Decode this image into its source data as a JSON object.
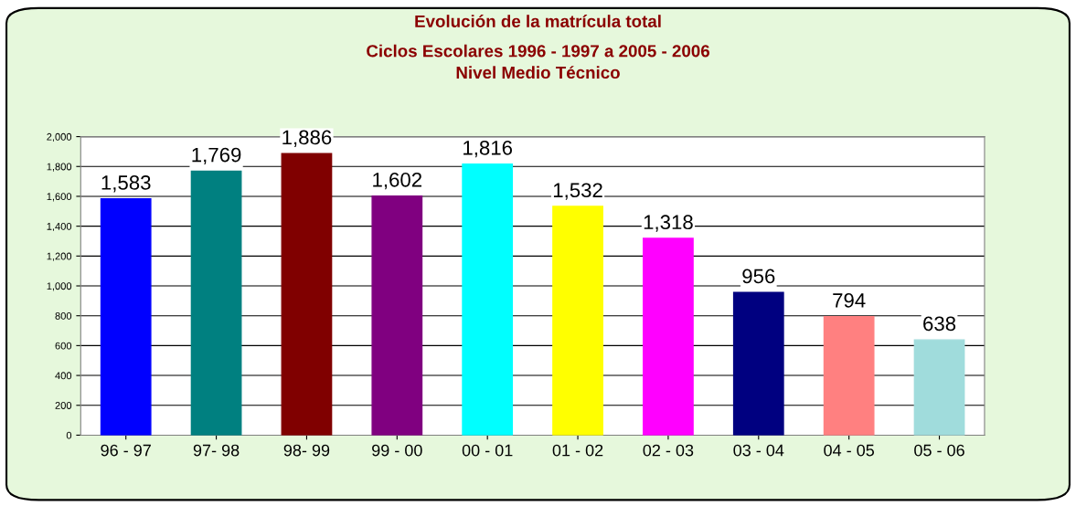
{
  "chart_data": {
    "type": "bar",
    "title": "Evolución de la matrícula total",
    "subtitle": "Ciclos Escolares 1996 - 1997 a 2005 - 2006\nNivel Medio Técnico",
    "categories": [
      "96 - 97",
      "97- 98",
      "98- 99",
      "99 - 00",
      "00 - 01",
      "01 - 02",
      "02 - 03",
      "03 - 04",
      "04 - 05",
      "05 - 06"
    ],
    "values": [
      1583,
      1769,
      1886,
      1602,
      1816,
      1532,
      1318,
      956,
      794,
      638
    ],
    "value_labels": [
      "1,583",
      "1,769",
      "1,886",
      "1,602",
      "1,816",
      "1,532",
      "1,318",
      "956",
      "794",
      "638"
    ],
    "colors": [
      "#0000ff",
      "#008080",
      "#800000",
      "#800080",
      "#00ffff",
      "#ffff00",
      "#ff00ff",
      "#000080",
      "#ff8080",
      "#a0dcdc"
    ],
    "ylim": [
      0,
      2000
    ],
    "yticks": [
      0,
      200,
      400,
      600,
      800,
      {
        "value": 1000,
        "label": "1,000"
      },
      {
        "value": 1200,
        "label": "1,200"
      },
      {
        "value": 1400,
        "label": "1,400"
      },
      {
        "value": 1600,
        "label": "1,600"
      },
      {
        "value": 1800,
        "label": "1,800"
      },
      {
        "value": 2000,
        "label": "2,000"
      }
    ],
    "grid": "y",
    "legend": false
  }
}
